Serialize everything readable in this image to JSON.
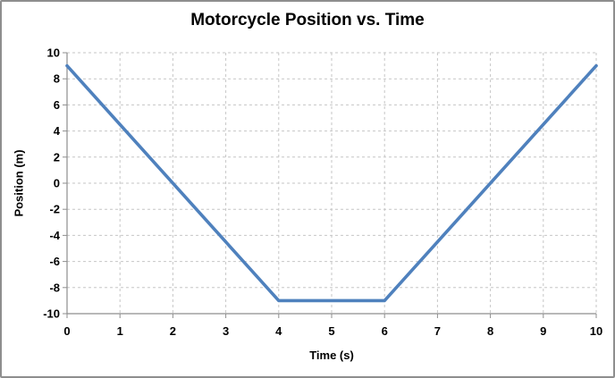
{
  "chart_data": {
    "type": "line",
    "title": "Motorcycle Position vs. Time",
    "xlabel": "Time (s)",
    "ylabel": "Position (m)",
    "x": [
      0,
      4,
      6,
      10
    ],
    "y": [
      9,
      -9,
      -9,
      9
    ],
    "xlim": [
      0,
      10
    ],
    "ylim": [
      -10,
      10
    ],
    "x_ticks": [
      0,
      1,
      2,
      3,
      4,
      5,
      6,
      7,
      8,
      9,
      10
    ],
    "y_ticks": [
      -10,
      -8,
      -6,
      -4,
      -2,
      0,
      2,
      4,
      6,
      8,
      10
    ],
    "grid": "dashed",
    "legend": "none",
    "colors": {
      "line": "#4F81BD",
      "grid": "#C6C6C6",
      "axis": "#8E8E8E",
      "text": "#000000",
      "background": "#FFFFFF",
      "border": "#8E8E8E"
    }
  }
}
